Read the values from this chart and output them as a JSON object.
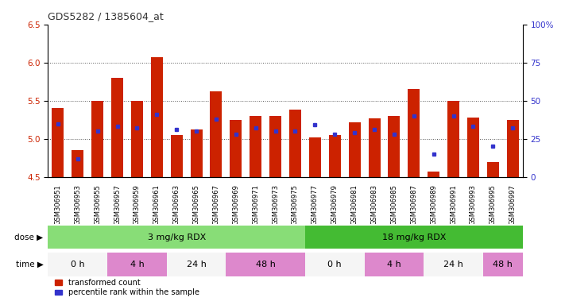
{
  "title": "GDS5282 / 1385604_at",
  "samples": [
    "GSM306951",
    "GSM306953",
    "GSM306955",
    "GSM306957",
    "GSM306959",
    "GSM306961",
    "GSM306963",
    "GSM306965",
    "GSM306967",
    "GSM306969",
    "GSM306971",
    "GSM306973",
    "GSM306975",
    "GSM306977",
    "GSM306979",
    "GSM306981",
    "GSM306983",
    "GSM306985",
    "GSM306987",
    "GSM306989",
    "GSM306991",
    "GSM306993",
    "GSM306995",
    "GSM306997"
  ],
  "red_values": [
    5.4,
    4.85,
    5.5,
    5.8,
    5.5,
    6.07,
    5.05,
    5.12,
    5.62,
    5.25,
    5.3,
    5.3,
    5.38,
    5.02,
    5.05,
    5.22,
    5.27,
    5.3,
    5.65,
    4.57,
    5.5,
    5.28,
    4.7,
    5.25
  ],
  "blue_percentile": [
    35,
    12,
    30,
    33,
    32,
    41,
    31,
    30,
    38,
    28,
    32,
    30,
    30,
    34,
    28,
    29,
    31,
    28,
    40,
    15,
    40,
    33,
    20,
    32
  ],
  "y_min": 4.5,
  "y_max": 6.5,
  "y_ticks": [
    4.5,
    5.0,
    5.5,
    6.0,
    6.5
  ],
  "y_right_ticks": [
    0,
    25,
    50,
    75,
    100
  ],
  "bar_color": "#cc2200",
  "blue_color": "#3333cc",
  "dose_groups": [
    {
      "label": "3 mg/kg RDX",
      "start": 0,
      "end": 13,
      "color": "#88dd77"
    },
    {
      "label": "18 mg/kg RDX",
      "start": 13,
      "end": 24,
      "color": "#44bb33"
    }
  ],
  "time_groups": [
    {
      "label": "0 h",
      "start": 0,
      "end": 3,
      "color": "#f5f5f5"
    },
    {
      "label": "4 h",
      "start": 3,
      "end": 6,
      "color": "#dd88cc"
    },
    {
      "label": "24 h",
      "start": 6,
      "end": 9,
      "color": "#f5f5f5"
    },
    {
      "label": "48 h",
      "start": 9,
      "end": 13,
      "color": "#dd88cc"
    },
    {
      "label": "0 h",
      "start": 13,
      "end": 16,
      "color": "#f5f5f5"
    },
    {
      "label": "4 h",
      "start": 16,
      "end": 19,
      "color": "#dd88cc"
    },
    {
      "label": "24 h",
      "start": 19,
      "end": 22,
      "color": "#f5f5f5"
    },
    {
      "label": "48 h",
      "start": 22,
      "end": 24,
      "color": "#dd88cc"
    }
  ],
  "legend_items": [
    {
      "label": "transformed count",
      "color": "#cc2200"
    },
    {
      "label": "percentile rank within the sample",
      "color": "#3333cc"
    }
  ],
  "bg_color": "#ffffff",
  "grid_color": "#000000",
  "tick_label_color_left": "#cc2200",
  "tick_label_color_right": "#3333cc"
}
